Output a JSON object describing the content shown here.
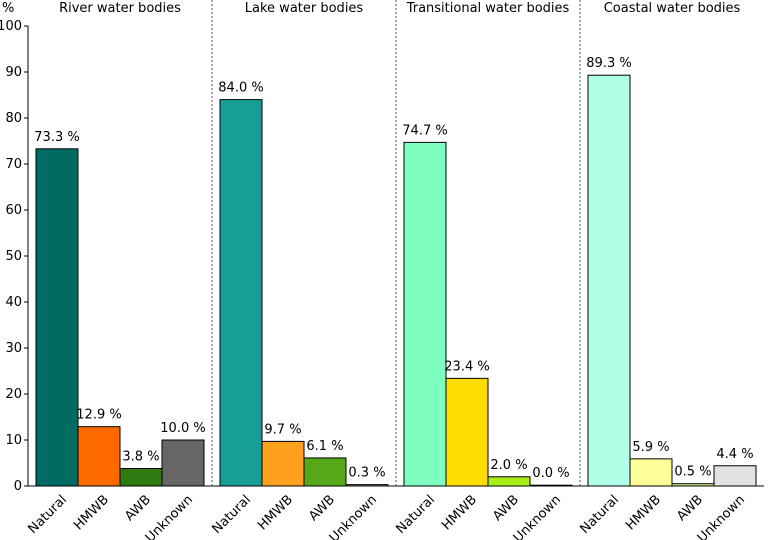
{
  "chart_data": {
    "type": "bar",
    "ylabel": "%",
    "ylim": [
      0,
      100
    ],
    "yticks": [
      0,
      10,
      20,
      30,
      40,
      50,
      60,
      70,
      80,
      90,
      100
    ],
    "categories": [
      "Natural",
      "HMWB",
      "AWB",
      "Unknown"
    ],
    "grid": false,
    "panels": [
      {
        "title": "River water bodies",
        "values": [
          73.3,
          12.9,
          3.8,
          10.0
        ],
        "labels": [
          "73.3 %",
          "12.9 %",
          "3.8 %",
          "10.0 %"
        ],
        "colors": [
          "#006b63",
          "#ff6a00",
          "#2f7a10",
          "#666666"
        ]
      },
      {
        "title": "Lake water bodies",
        "values": [
          84.0,
          9.7,
          6.1,
          0.3
        ],
        "labels": [
          "84.0 %",
          "9.7 %",
          "6.1 %",
          "0.3 %"
        ],
        "colors": [
          "#179f97",
          "#ffa11c",
          "#55a818",
          "#9a9a9a"
        ]
      },
      {
        "title": "Transitional water bodies",
        "values": [
          74.7,
          23.4,
          2.0,
          0.0
        ],
        "labels": [
          "74.7 %",
          "23.4 %",
          "2.0 %",
          "0.0 %"
        ],
        "colors": [
          "#7fffbf",
          "#ffdd00",
          "#a8ef1a",
          "#c8c8c8"
        ]
      },
      {
        "title": "Coastal water bodies",
        "values": [
          89.3,
          5.9,
          0.5,
          4.4
        ],
        "labels": [
          "89.3 %",
          "5.9 %",
          "0.5 %",
          "4.4 %"
        ],
        "colors": [
          "#b2ffe8",
          "#ffff99",
          "#c8f38c",
          "#e2e2e2"
        ]
      }
    ]
  }
}
